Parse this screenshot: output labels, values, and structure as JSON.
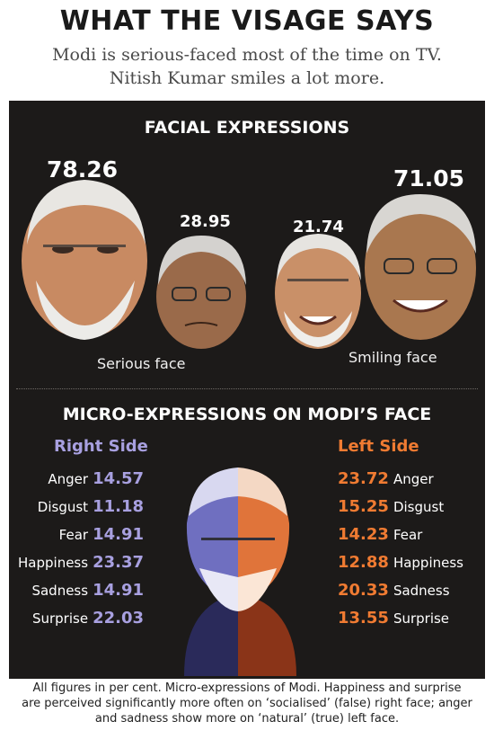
{
  "header": {
    "headline": "WHAT THE VISAGE SAYS",
    "subhead_line1": "Modi is serious-faced most of the time on TV.",
    "subhead_line2": "Nitish Kumar smiles a lot more."
  },
  "colors": {
    "panel_bg": "#1c1a19",
    "right_side_accent": "#a8a0e0",
    "left_side_accent": "#f07b32",
    "text_light": "#ffffff"
  },
  "chart_data": [
    {
      "type": "bar",
      "title": "FACIAL EXPRESSIONS",
      "unit": "per cent",
      "categories": [
        "Serious face",
        "Smiling face"
      ],
      "series": [
        {
          "values": [
            78.26,
            21.74
          ]
        },
        {
          "values": [
            28.95,
            71.05
          ]
        }
      ],
      "labels": [
        "78.26",
        "28.95",
        "21.74",
        "71.05"
      ]
    },
    {
      "type": "table",
      "title": "MICRO-EXPRESSIONS ON MODI’S FACE",
      "columns": [
        "Right Side",
        "Left Side"
      ],
      "categories": [
        "Anger",
        "Disgust",
        "Fear",
        "Happiness",
        "Sadness",
        "Surprise"
      ],
      "series": [
        {
          "name": "Right Side",
          "values": [
            14.57,
            11.18,
            14.91,
            23.37,
            14.91,
            22.03
          ]
        },
        {
          "name": "Left Side",
          "values": [
            23.72,
            15.25,
            14.23,
            12.88,
            20.33,
            13.55
          ]
        }
      ],
      "right_display": [
        "14.57",
        "11.18",
        "14.91",
        "23.37",
        "14.91",
        "22.03"
      ],
      "left_display": [
        "23.72",
        "15.25",
        "14.23",
        "12.88",
        "20.33",
        "13.55"
      ]
    }
  ],
  "facial": {
    "title": "FACIAL EXPRESSIONS",
    "label_serious": "Serious face",
    "label_smiling": "Smiling face",
    "v1": "78.26",
    "v2": "28.95",
    "v3": "21.74",
    "v4": "71.05"
  },
  "micro": {
    "title": "MICRO-EXPRESSIONS ON MODI’S FACE",
    "right_title": "Right Side",
    "left_title": "Left Side",
    "rows": [
      {
        "label": "Anger",
        "right": "14.57",
        "left": "23.72"
      },
      {
        "label": "Disgust",
        "right": "11.18",
        "left": "15.25"
      },
      {
        "label": "Fear",
        "right": "14.91",
        "left": "14.23"
      },
      {
        "label": "Happiness",
        "right": "23.37",
        "left": "12.88"
      },
      {
        "label": "Sadness",
        "right": "14.91",
        "left": "20.33"
      },
      {
        "label": "Surprise",
        "right": "22.03",
        "left": "13.55"
      }
    ]
  },
  "footer": {
    "line1": "All figures in per cent. Micro-expressions of Modi. Happiness and surprise",
    "line2": "are perceived significantly more often on ‘socialised’ (false) right face; anger",
    "line3": "and sadness show more on ‘natural’ (true) left face."
  }
}
